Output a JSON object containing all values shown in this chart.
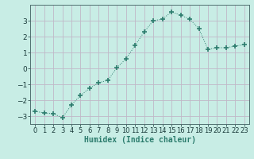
{
  "x": [
    0,
    1,
    2,
    3,
    4,
    5,
    6,
    7,
    8,
    9,
    10,
    11,
    12,
    13,
    14,
    15,
    16,
    17,
    18,
    19,
    20,
    21,
    22,
    23
  ],
  "y": [
    -2.7,
    -2.8,
    -2.85,
    -3.1,
    -2.3,
    -1.7,
    -1.25,
    -0.9,
    -0.75,
    0.05,
    0.6,
    1.45,
    2.3,
    3.0,
    3.1,
    3.55,
    3.35,
    3.1,
    2.5,
    1.2,
    1.3,
    1.3,
    1.4,
    1.5
  ],
  "xlim": [
    -0.5,
    23.5
  ],
  "ylim": [
    -3.5,
    4.0
  ],
  "yticks": [
    -3,
    -2,
    -1,
    0,
    1,
    2,
    3
  ],
  "xticks": [
    0,
    1,
    2,
    3,
    4,
    5,
    6,
    7,
    8,
    9,
    10,
    11,
    12,
    13,
    14,
    15,
    16,
    17,
    18,
    19,
    20,
    21,
    22,
    23
  ],
  "xlabel": "Humidex (Indice chaleur)",
  "line_color": "#2d7d6e",
  "marker": "+",
  "marker_size": 4,
  "bg_color": "#c8ede5",
  "grid_color": "#c0b8c8",
  "xlabel_fontsize": 7,
  "tick_fontsize": 6,
  "ytick_fontsize": 6.5
}
